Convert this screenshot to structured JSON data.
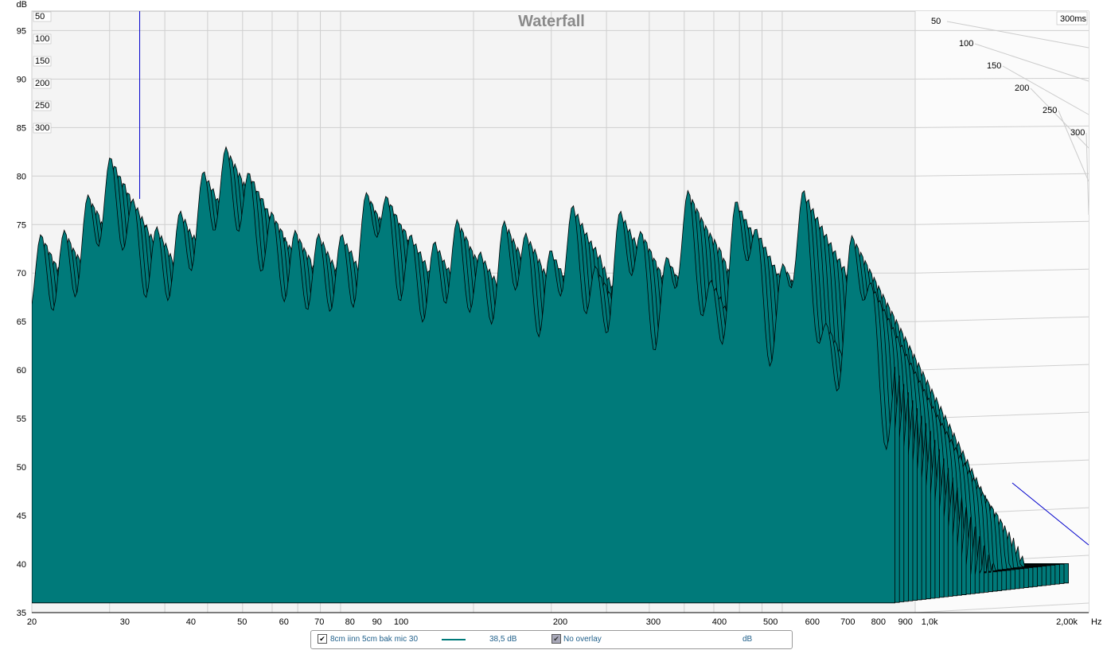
{
  "chart_data": {
    "type": "waterfall",
    "title": "Waterfall",
    "y_unit_label": "dB",
    "x_unit_label": "Hz",
    "z_unit_label": "300ms",
    "y_ticks": [
      "95",
      "90",
      "85",
      "80",
      "75",
      "70",
      "65",
      "60",
      "55",
      "50",
      "45",
      "40",
      "35"
    ],
    "ylim": [
      35,
      97
    ],
    "x_ticks": [
      "20",
      "30",
      "40",
      "50",
      "60",
      "70",
      "80",
      "90",
      "100",
      "200",
      "300",
      "400",
      "500",
      "600",
      "700",
      "800",
      "900",
      "1,0k",
      "2,00k"
    ],
    "xlim": [
      20,
      2000
    ],
    "z_ticks": [
      "50",
      "100",
      "150",
      "200",
      "250",
      "300"
    ],
    "time_range_ms": [
      0,
      300
    ],
    "x_scale": "log",
    "grid": true,
    "slices": 40,
    "colors": {
      "fill": "#007a7a",
      "stroke": "#000000",
      "cursor": "#0000cc",
      "grid": "#cfcfcf"
    }
  },
  "legend": {
    "measurement_name": "8cm iinn 5cm bak mic 30",
    "level": "38,5 dB",
    "overlay": "No overlay",
    "unit": "dB"
  }
}
